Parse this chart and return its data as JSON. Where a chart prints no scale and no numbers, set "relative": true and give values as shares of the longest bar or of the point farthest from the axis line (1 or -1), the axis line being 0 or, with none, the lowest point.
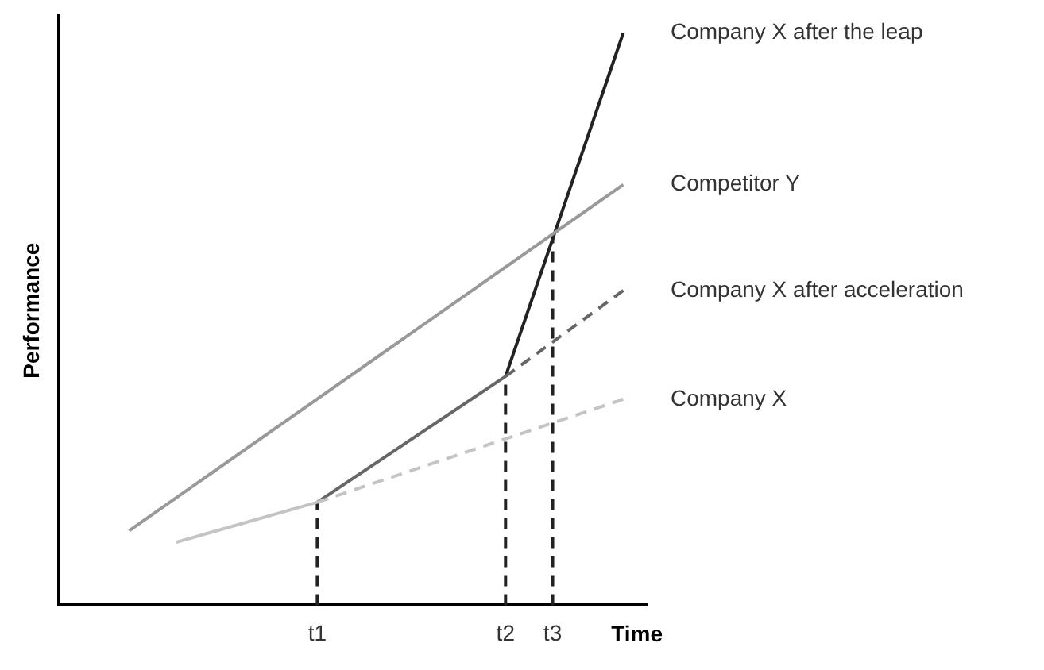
{
  "chart_data": {
    "type": "line",
    "relative": true,
    "xlabel": "Time",
    "ylabel": "Performance",
    "categories": [
      null,
      null,
      null,
      null,
      null,
      null,
      null,
      null,
      null,
      null,
      null,
      "t1",
      null,
      null,
      null,
      null,
      null,
      null,
      null,
      "t2",
      null,
      "t3",
      null,
      null,
      null,
      null
    ],
    "tick_labels": "x",
    "grid": false,
    "legend": false,
    "marker": "none",
    "series": [
      {
        "name": "Competitor Y",
        "color": "#999999",
        "line_style": "solid",
        "values": [
          null,
          null,
          null,
          0.13,
          null,
          null,
          null,
          null,
          null,
          null,
          null,
          null,
          null,
          null,
          null,
          null,
          null,
          null,
          null,
          null,
          null,
          null,
          null,
          null,
          0.735,
          null
        ]
      },
      {
        "color": "#c4c4c4",
        "line_style": "solid",
        "values": [
          null,
          null,
          null,
          null,
          null,
          0.11,
          null,
          null,
          null,
          null,
          null,
          0.18,
          null,
          null,
          null,
          null,
          null,
          null,
          null,
          null,
          null,
          null,
          null,
          null,
          null,
          null
        ]
      },
      {
        "name": "Company X",
        "color": "#c4c4c4",
        "line_style": "dashed",
        "values": [
          null,
          null,
          null,
          null,
          null,
          null,
          null,
          null,
          null,
          null,
          null,
          0.18,
          null,
          null,
          null,
          null,
          null,
          null,
          null,
          null,
          null,
          null,
          null,
          null,
          0.36,
          null
        ]
      },
      {
        "color": "#666666",
        "line_style": "solid",
        "values": [
          null,
          null,
          null,
          null,
          null,
          null,
          null,
          null,
          null,
          null,
          null,
          0.18,
          null,
          null,
          null,
          null,
          null,
          null,
          null,
          0.4,
          null,
          null,
          null,
          null,
          null,
          null
        ]
      },
      {
        "name": "Company X after acceleration",
        "color": "#666666",
        "line_style": "dashed",
        "values": [
          null,
          null,
          null,
          null,
          null,
          null,
          null,
          null,
          null,
          null,
          null,
          null,
          null,
          null,
          null,
          null,
          null,
          null,
          null,
          0.4,
          null,
          null,
          null,
          null,
          0.55,
          null
        ]
      },
      {
        "name": "Company X after the leap",
        "color": "#222222",
        "line_style": "solid",
        "values": [
          null,
          null,
          null,
          null,
          null,
          null,
          null,
          null,
          null,
          null,
          null,
          null,
          null,
          null,
          null,
          null,
          null,
          null,
          null,
          0.4,
          null,
          null,
          null,
          null,
          1,
          null
        ]
      }
    ],
    "ref_lines": [
      {
        "axis": "x",
        "value": "t1",
        "color": "#222222",
        "line_style": "dashed"
      },
      {
        "axis": "x",
        "value": "t2",
        "color": "#222222",
        "line_style": "dashed"
      },
      {
        "axis": "x",
        "value": "t3",
        "color": "#222222",
        "line_style": "dashed"
      }
    ]
  }
}
